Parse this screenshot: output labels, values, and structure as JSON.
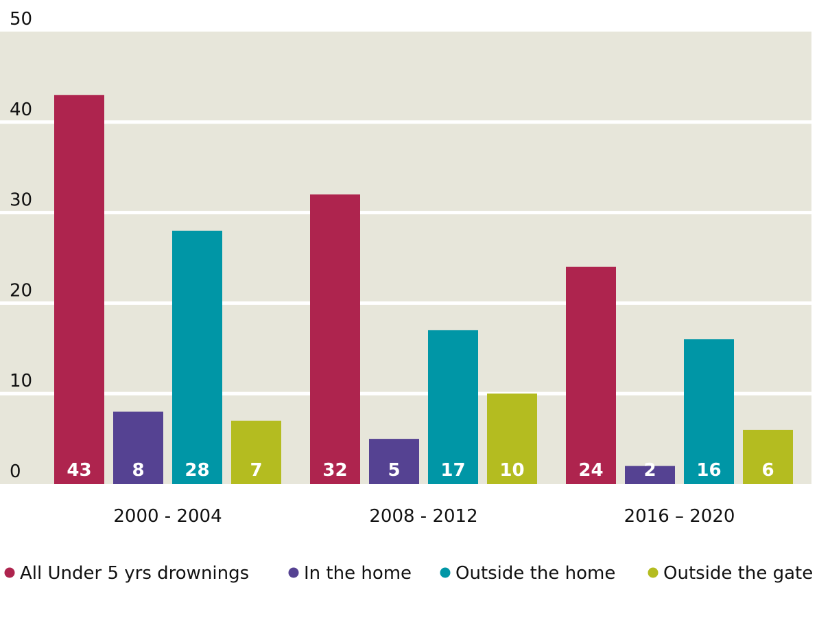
{
  "chart_data": {
    "type": "bar",
    "categories": [
      "2000 - 2004",
      "2008 - 2012",
      "2016 – 2020"
    ],
    "series": [
      {
        "name": "All Under 5 yrs drownings",
        "color": "#AE244E",
        "values": [
          43,
          32,
          24
        ]
      },
      {
        "name": "In the home",
        "color": "#554292",
        "values": [
          8,
          5,
          2
        ]
      },
      {
        "name": "Outside the home",
        "color": "#0096A6",
        "values": [
          28,
          17,
          16
        ]
      },
      {
        "name": "Outside the gate",
        "color": "#B4BC20",
        "values": [
          7,
          10,
          6
        ]
      }
    ],
    "yticks": [
      0,
      10,
      20,
      30,
      40,
      50
    ],
    "ylim": [
      0,
      50
    ],
    "grid": true,
    "legend": "bottom",
    "plot_background": "#E7E6DA",
    "title": "",
    "xlabel": "",
    "ylabel": ""
  }
}
